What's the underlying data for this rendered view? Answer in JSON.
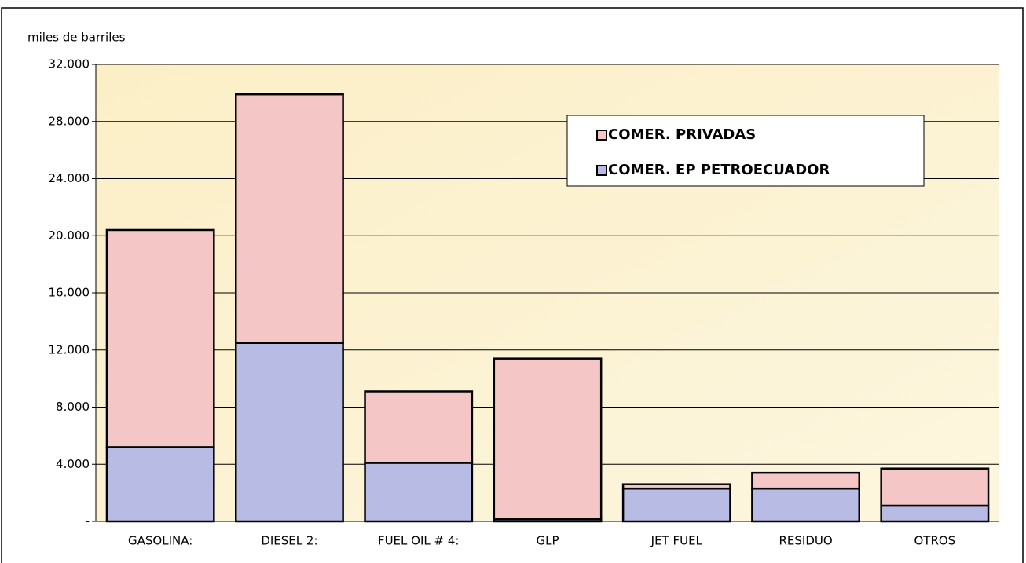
{
  "chart_data": {
    "type": "stacked_bar",
    "y_label": "miles de barriles",
    "categories": [
      "GASOLINA:",
      "DIESEL 2:",
      "FUEL OIL # 4:",
      "GLP",
      "JET FUEL",
      "RESIDUO",
      "OTROS"
    ],
    "series": [
      {
        "name": "COMER. EP PETROECUADOR",
        "color": "#b8bbe3",
        "values": [
          5200,
          12500,
          4100,
          150,
          2300,
          2300,
          1100
        ]
      },
      {
        "name": "COMER. PRIVADAS",
        "color": "#f5c6c6",
        "values": [
          15200,
          17400,
          5000,
          11250,
          300,
          1100,
          2600
        ]
      }
    ],
    "ylim": [
      0,
      32000
    ],
    "yticks": [
      {
        "value": 0,
        "label": "-"
      },
      {
        "value": 4000,
        "label": "4.000"
      },
      {
        "value": 8000,
        "label": "8.000"
      },
      {
        "value": 12000,
        "label": "12.000"
      },
      {
        "value": 16000,
        "label": "16.000"
      },
      {
        "value": 20000,
        "label": "20.000"
      },
      {
        "value": 24000,
        "label": "24.000"
      },
      {
        "value": 28000,
        "label": "28.000"
      },
      {
        "value": 32000,
        "label": "32.000"
      }
    ],
    "grid": true
  }
}
